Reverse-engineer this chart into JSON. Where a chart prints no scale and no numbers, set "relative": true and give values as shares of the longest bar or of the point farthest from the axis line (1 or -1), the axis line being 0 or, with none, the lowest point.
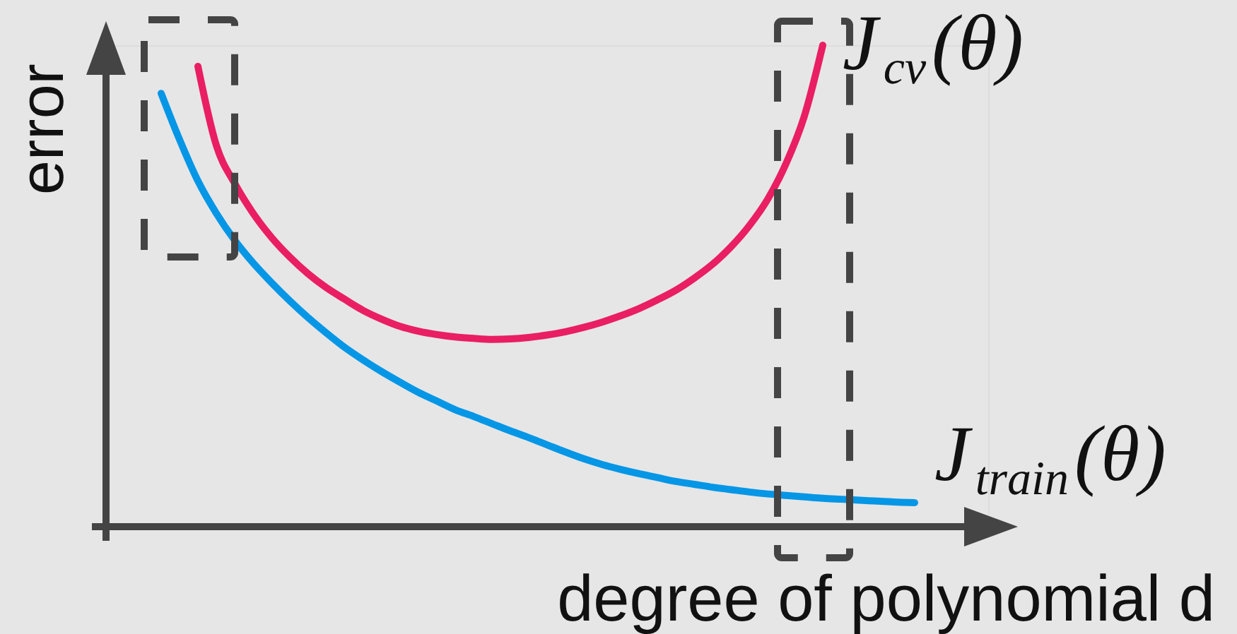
{
  "chart_data": {
    "type": "line",
    "relative": true,
    "xlabel": "degree of polynomial d",
    "ylabel": "error",
    "line_style": "solid",
    "categories": [
      null,
      null,
      null,
      null,
      null,
      null,
      null,
      null,
      null,
      null,
      null,
      null,
      null,
      null,
      null,
      null,
      null,
      null,
      null,
      null,
      null,
      null,
      null,
      null,
      null,
      null,
      null,
      null,
      null,
      null,
      null,
      null,
      null,
      null,
      null,
      null,
      null,
      null,
      null,
      null,
      null,
      null,
      null,
      null,
      null,
      null,
      null,
      null,
      null
    ],
    "series": [
      {
        "name": "J$_{cv}$(θ)",
        "color": "#e91e63",
        "values": [
          null,
          null,
          null,
          null,
          null,
          0.956,
          0.792,
          0.713,
          0.651,
          0.601,
          0.56,
          0.525,
          0.496,
          0.472,
          0.449,
          0.431,
          0.416,
          0.406,
          0.399,
          0.394,
          0.391,
          0.389,
          0.39,
          0.393,
          0.398,
          0.405,
          0.414,
          0.425,
          0.438,
          0.453,
          0.471,
          0.491,
          0.516,
          0.545,
          0.581,
          0.625,
          0.68,
          0.754,
          0.853,
          1,
          null,
          null,
          null,
          null,
          null,
          null,
          null,
          null,
          null
        ]
      },
      {
        "name": "J$_{train}$(θ)",
        "color": "#0596e6",
        "values": [
          null,
          null,
          null,
          0.9,
          0.804,
          0.718,
          0.651,
          0.595,
          0.548,
          0.507,
          0.469,
          0.434,
          0.402,
          0.372,
          0.346,
          0.322,
          0.3,
          0.279,
          0.261,
          0.243,
          0.229,
          0.214,
          0.199,
          0.185,
          0.17,
          0.155,
          0.141,
          0.129,
          0.119,
          0.11,
          0.102,
          0.094,
          0.088,
          0.082,
          0.077,
          0.072,
          0.068,
          0.065,
          0.062,
          0.059,
          0.057,
          0.055,
          0.053,
          0.051,
          0.05,
          null,
          null,
          null,
          null
        ]
      }
    ]
  }
}
